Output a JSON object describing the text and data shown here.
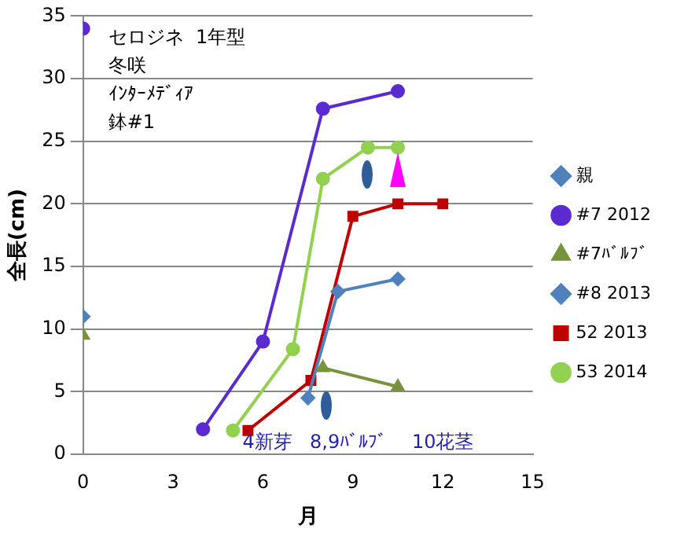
{
  "chart_data": {
    "type": "line",
    "xlabel": "月",
    "ylabel": "全長(cm)",
    "xlim": [
      0,
      15
    ],
    "xticks": [
      0,
      3,
      6,
      9,
      12,
      15
    ],
    "ylim": [
      0,
      35
    ],
    "yticks": [
      0,
      5,
      10,
      15,
      20,
      25,
      30,
      35
    ],
    "grid": "y",
    "legend": "right",
    "annotations": [
      "セロジネ  1年型",
      "冬咲",
      "ｲﾝﾀｰﾒﾃﾞｨｱ",
      "鉢#1",
      "4新芽",
      "8,9ﾊﾞﾙﾌﾞ",
      "10花茎"
    ],
    "series": [
      {
        "name": "親",
        "color": "#4f81bd",
        "marker": "diamond",
        "x": [
          0
        ],
        "values": [
          11
        ]
      },
      {
        "name": "#7 2012",
        "color": "#5b2bd1",
        "marker": "circle",
        "x": [
          0,
          null,
          4,
          6,
          8,
          10.5
        ],
        "values": [
          34,
          null,
          2,
          9,
          27.6,
          29
        ]
      },
      {
        "name": "#7ﾊﾞﾙﾌﾞ",
        "color": "#77933c",
        "marker": "triangle",
        "x": [
          0,
          null,
          8,
          10.5
        ],
        "values": [
          9.5,
          null,
          6.9,
          5.4
        ]
      },
      {
        "name": "#8 2013",
        "color": "#4f81bd",
        "marker": "diamond",
        "x": [
          7.5,
          8.5,
          10.5
        ],
        "values": [
          4.5,
          13,
          14
        ]
      },
      {
        "name": "52 2013",
        "color": "#c00000",
        "marker": "square",
        "x": [
          5.5,
          7.6,
          9,
          10.5,
          12
        ],
        "values": [
          1.9,
          5.9,
          19,
          20,
          20
        ]
      },
      {
        "name": "53 2014",
        "color": "#92d050",
        "marker": "circle",
        "x": [
          5,
          7,
          8,
          9.5,
          10.5
        ],
        "values": [
          1.9,
          8.4,
          22,
          24.5,
          24.5
        ]
      }
    ]
  }
}
